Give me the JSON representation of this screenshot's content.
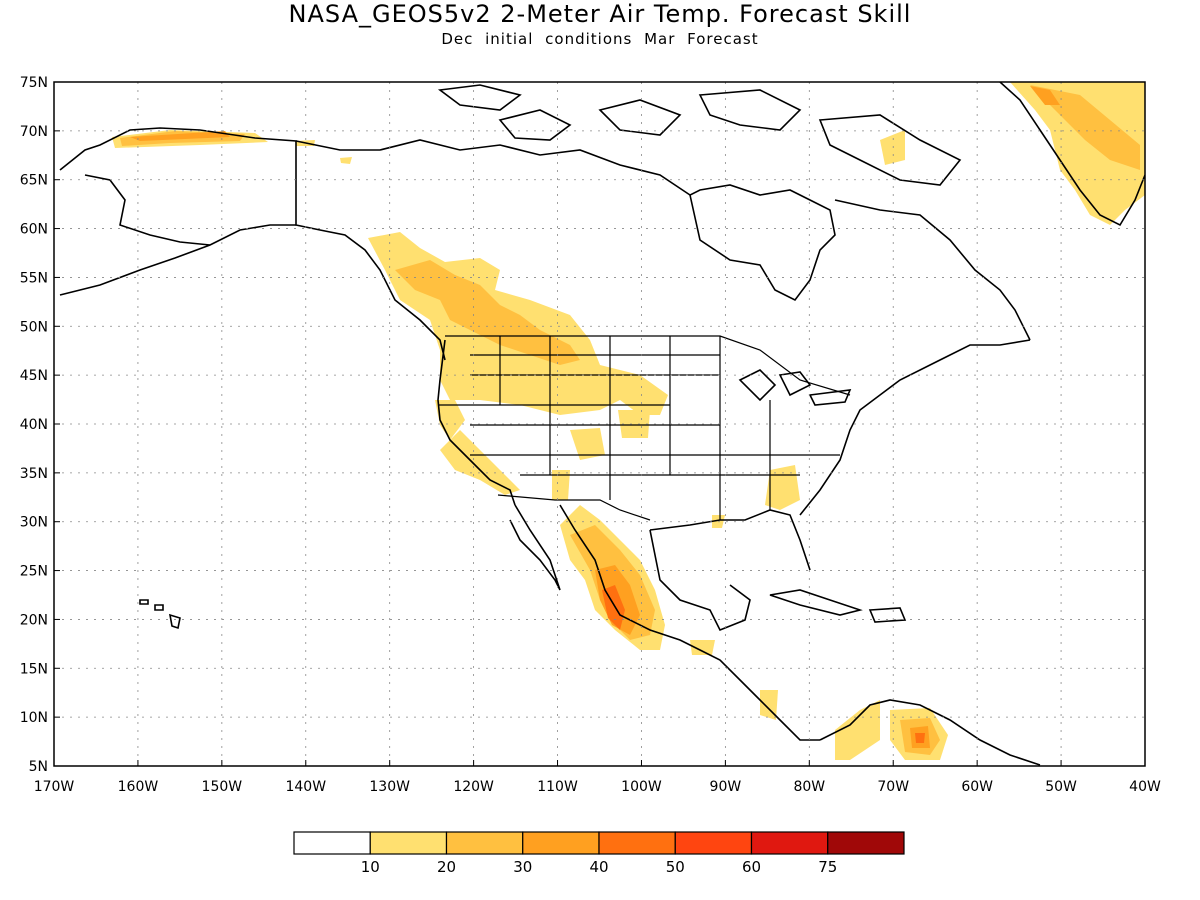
{
  "title": "NASA_GEOS5v2 2-Meter Air Temp. Forecast Skill",
  "subtitle": "Dec initial conditions  Mar Forecast",
  "lat_labels": [
    "75N",
    "70N",
    "65N",
    "60N",
    "55N",
    "50N",
    "45N",
    "40N",
    "35N",
    "30N",
    "25N",
    "20N",
    "15N",
    "10N",
    "5N"
  ],
  "lon_labels": [
    "170W",
    "160W",
    "150W",
    "140W",
    "130W",
    "120W",
    "110W",
    "100W",
    "90W",
    "80W",
    "70W",
    "60W",
    "50W",
    "40W"
  ],
  "colorbar": {
    "labels": [
      "10",
      "20",
      "30",
      "40",
      "50",
      "60",
      "75"
    ],
    "colors": [
      "#ffffff",
      "#ffe070",
      "#ffc040",
      "#ffa020",
      "#ff7010",
      "#ff4510",
      "#e01810",
      "#a00808"
    ]
  },
  "map": {
    "projection": "cylindrical",
    "lon_range": [
      -170,
      -40
    ],
    "lat_range": [
      5,
      75
    ]
  }
}
